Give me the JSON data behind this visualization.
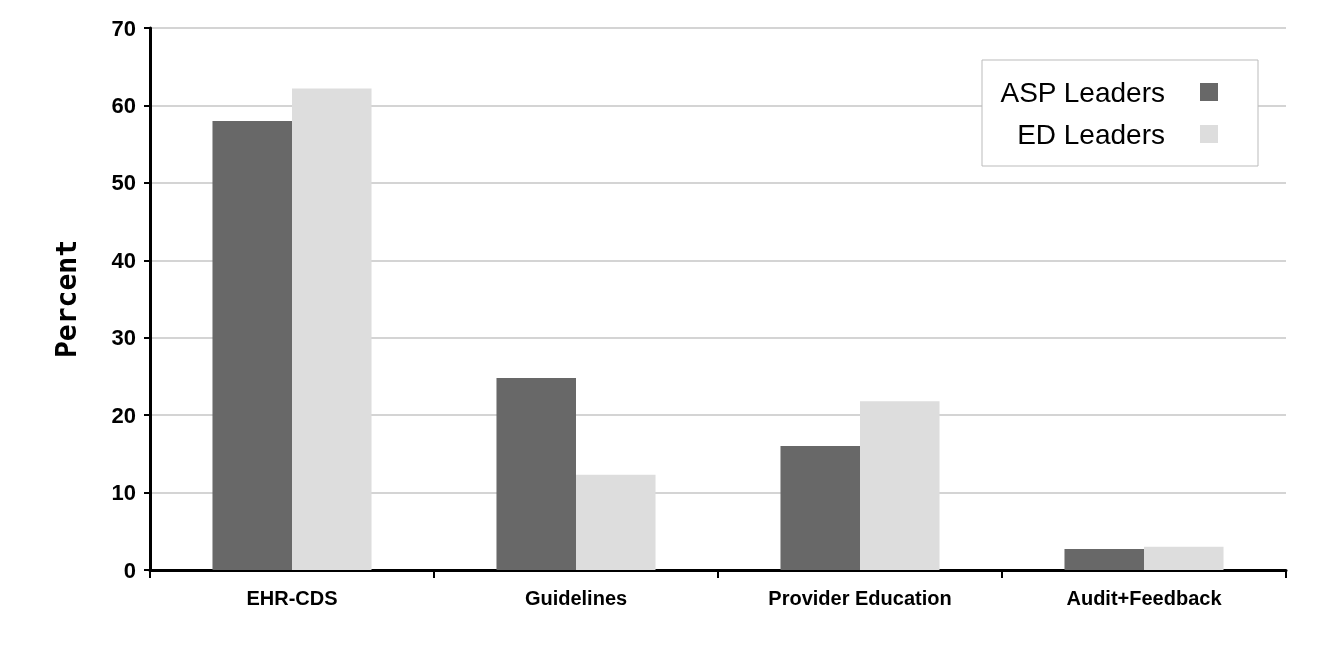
{
  "chart_data": {
    "type": "bar",
    "ylabel": "Percent",
    "categories": [
      "EHR-CDS",
      "Guidelines",
      "Provider Education",
      "Audit+Feedback"
    ],
    "series": [
      {
        "name": "ASP Leaders",
        "color": "#686868",
        "values": [
          58,
          24.8,
          16,
          2.7
        ]
      },
      {
        "name": "ED Leaders",
        "color": "#dddddd",
        "values": [
          62.2,
          12.3,
          21.8,
          3
        ]
      }
    ],
    "ylim": [
      0,
      70
    ],
    "yticks": [
      0,
      10,
      20,
      30,
      40,
      50,
      60,
      70
    ],
    "grid": "y",
    "legend": "top right"
  }
}
